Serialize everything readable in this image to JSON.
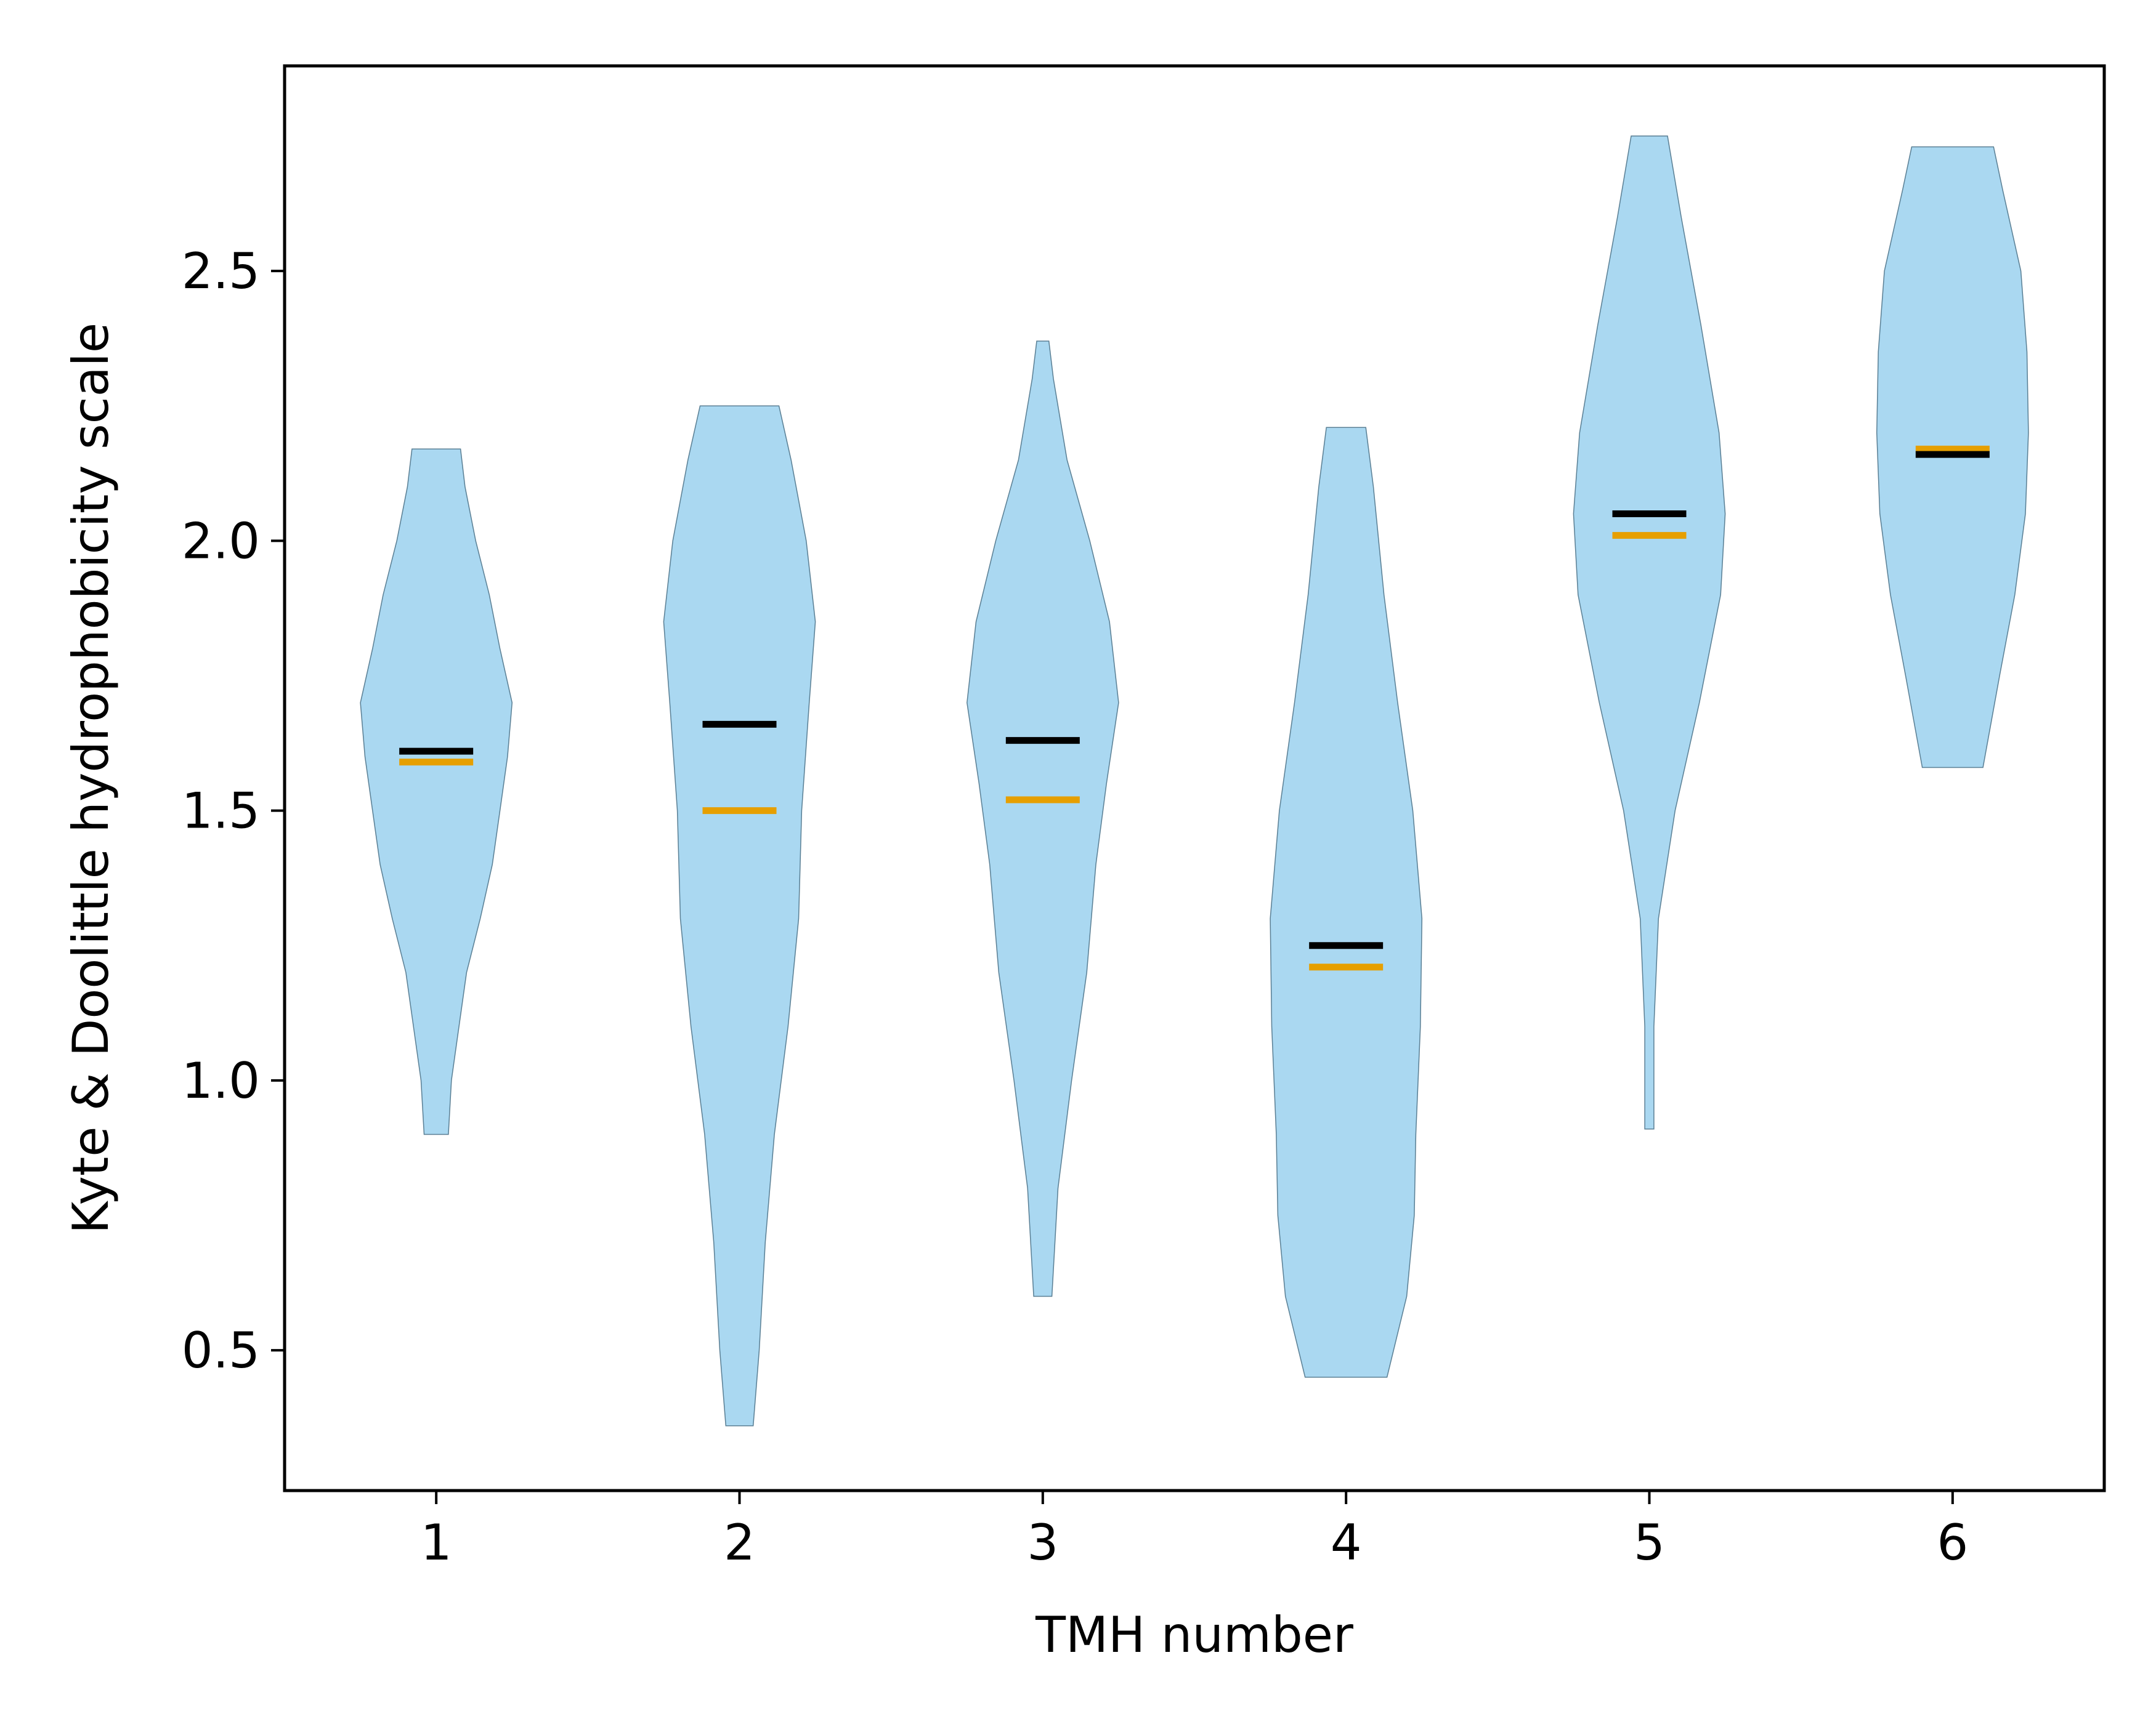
{
  "chart_data": {
    "type": "violin",
    "title": "",
    "xlabel": "TMH number",
    "ylabel": "Kyte & Doolittle hydrophobicity scale",
    "xlim": [
      0.5,
      6.5
    ],
    "ylim": [
      0.24,
      2.88
    ],
    "x_ticks": [
      1,
      2,
      3,
      4,
      5,
      6
    ],
    "y_ticks": [
      0.5,
      1.0,
      1.5,
      2.0,
      2.5
    ],
    "y_tick_labels": [
      "0.5",
      "1.0",
      "1.5",
      "2.0",
      "2.5"
    ],
    "grid": false,
    "legend": "none",
    "colors": {
      "violin_fill": "#aad8f1",
      "violin_edge": "#5a7f94",
      "mean_line": "#000000",
      "median_line": "#e69f00"
    },
    "violins": [
      {
        "x": 1,
        "label": "1",
        "min": 0.9,
        "max": 2.17,
        "mean": 1.61,
        "median": 1.59,
        "density": [
          [
            0.9,
            0.08
          ],
          [
            1.0,
            0.1
          ],
          [
            1.1,
            0.15
          ],
          [
            1.2,
            0.2
          ],
          [
            1.3,
            0.29
          ],
          [
            1.4,
            0.37
          ],
          [
            1.5,
            0.42
          ],
          [
            1.6,
            0.47
          ],
          [
            1.7,
            0.5
          ],
          [
            1.8,
            0.42
          ],
          [
            1.9,
            0.35
          ],
          [
            2.0,
            0.26
          ],
          [
            2.1,
            0.19
          ],
          [
            2.17,
            0.16
          ]
        ]
      },
      {
        "x": 2,
        "label": "2",
        "min": 0.36,
        "max": 2.25,
        "mean": 1.66,
        "median": 1.5,
        "density": [
          [
            0.36,
            0.09
          ],
          [
            0.5,
            0.13
          ],
          [
            0.7,
            0.17
          ],
          [
            0.9,
            0.23
          ],
          [
            1.1,
            0.32
          ],
          [
            1.3,
            0.39
          ],
          [
            1.5,
            0.41
          ],
          [
            1.7,
            0.46
          ],
          [
            1.85,
            0.5
          ],
          [
            2.0,
            0.44
          ],
          [
            2.15,
            0.34
          ],
          [
            2.25,
            0.26
          ]
        ]
      },
      {
        "x": 3,
        "label": "3",
        "min": 0.6,
        "max": 2.37,
        "mean": 1.63,
        "median": 1.52,
        "density": [
          [
            0.6,
            0.06
          ],
          [
            0.8,
            0.1
          ],
          [
            1.0,
            0.19
          ],
          [
            1.2,
            0.29
          ],
          [
            1.4,
            0.35
          ],
          [
            1.55,
            0.42
          ],
          [
            1.7,
            0.5
          ],
          [
            1.85,
            0.44
          ],
          [
            2.0,
            0.31
          ],
          [
            2.15,
            0.16
          ],
          [
            2.3,
            0.07
          ],
          [
            2.37,
            0.04
          ]
        ]
      },
      {
        "x": 4,
        "label": "4",
        "min": 0.45,
        "max": 2.21,
        "mean": 1.25,
        "median": 1.21,
        "density": [
          [
            0.45,
            0.27
          ],
          [
            0.6,
            0.4
          ],
          [
            0.75,
            0.45
          ],
          [
            0.9,
            0.46
          ],
          [
            1.1,
            0.49
          ],
          [
            1.3,
            0.5
          ],
          [
            1.5,
            0.44
          ],
          [
            1.7,
            0.34
          ],
          [
            1.9,
            0.25
          ],
          [
            2.1,
            0.18
          ],
          [
            2.21,
            0.13
          ]
        ]
      },
      {
        "x": 5,
        "label": "5",
        "min": 0.91,
        "max": 2.75,
        "mean": 2.05,
        "median": 2.01,
        "density": [
          [
            0.91,
            0.03
          ],
          [
            1.1,
            0.03
          ],
          [
            1.3,
            0.06
          ],
          [
            1.5,
            0.17
          ],
          [
            1.7,
            0.33
          ],
          [
            1.9,
            0.47
          ],
          [
            2.05,
            0.5
          ],
          [
            2.2,
            0.46
          ],
          [
            2.4,
            0.34
          ],
          [
            2.6,
            0.21
          ],
          [
            2.75,
            0.12
          ]
        ]
      },
      {
        "x": 6,
        "label": "6",
        "min": 1.58,
        "max": 2.73,
        "mean": 2.16,
        "median": 2.17,
        "density": [
          [
            1.58,
            0.2
          ],
          [
            1.75,
            0.31
          ],
          [
            1.9,
            0.41
          ],
          [
            2.05,
            0.48
          ],
          [
            2.2,
            0.5
          ],
          [
            2.35,
            0.49
          ],
          [
            2.5,
            0.45
          ],
          [
            2.65,
            0.33
          ],
          [
            2.73,
            0.27
          ]
        ]
      }
    ]
  }
}
